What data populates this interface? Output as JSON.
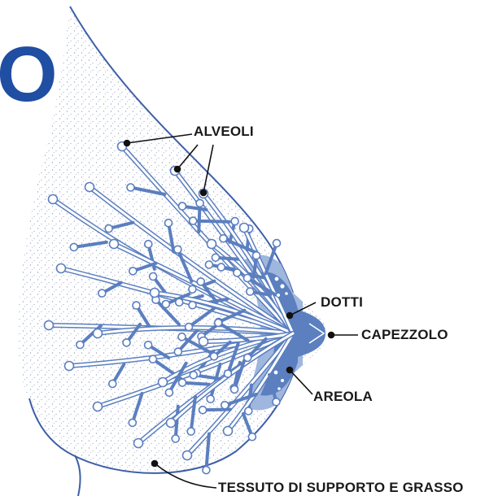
{
  "header": {
    "partial_letter": "O"
  },
  "colors": {
    "accent_blue": "#1f4ea3",
    "gland_blue": "#5b7fbf",
    "gland_light": "#9fb6de",
    "outline": "#3e5fa8",
    "stipple": "#9aa6c0",
    "label_text": "#1a1a1a"
  },
  "labels": {
    "alveoli": "ALVEOLI",
    "dotti": "DOTTI",
    "capezzolo": "CAPEZZOLO",
    "areola": "AREOLA",
    "tessuto": "TESSUTO DI SUPPORTO E GRASSO"
  }
}
